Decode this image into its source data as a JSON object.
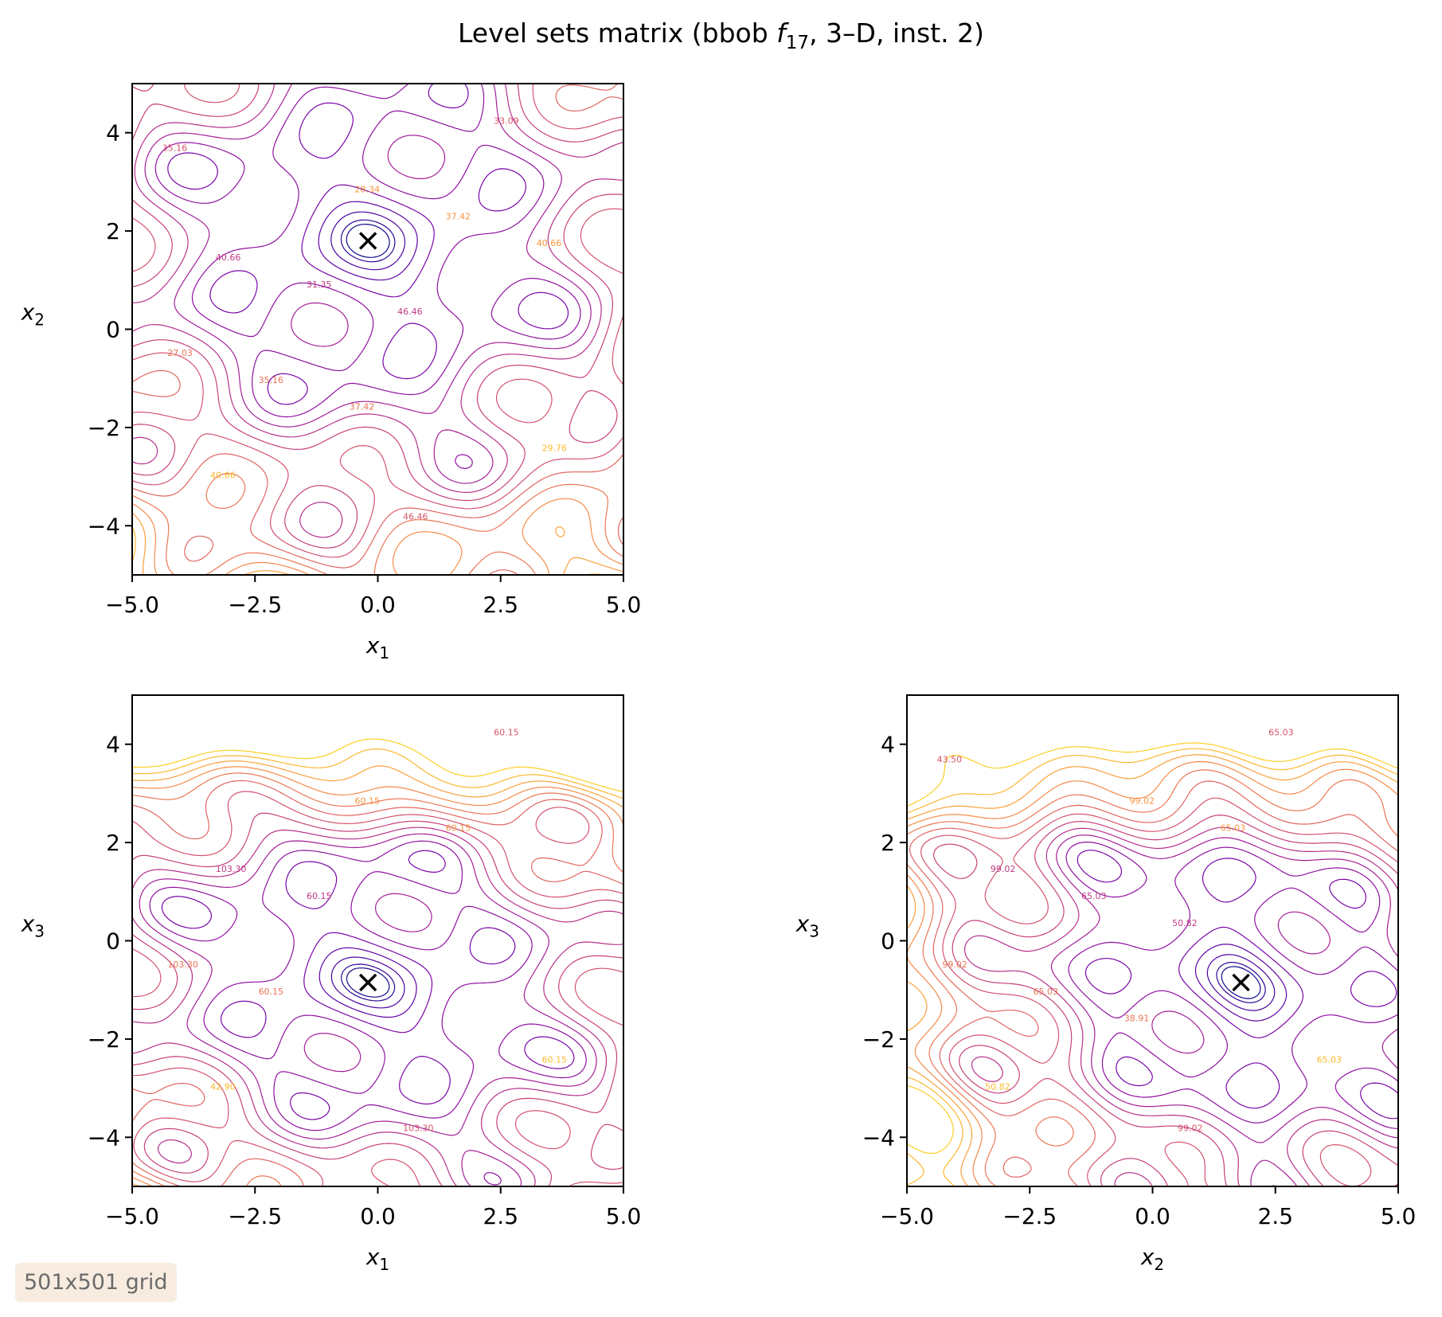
{
  "figure": {
    "title_prefix": "Level sets matrix (bbob ",
    "title_func": "f",
    "title_sub": "17",
    "title_suffix": ", 3–D, inst. 2)",
    "badge": "501x501 grid"
  },
  "chart_data": [
    {
      "type": "contour",
      "panel": "x1-x2",
      "xlabel": "x1",
      "ylabel": "x2",
      "xlim": [
        -5,
        5
      ],
      "ylim": [
        -5,
        5
      ],
      "xticks": [
        "−5.0",
        "−2.5",
        "0.0",
        "2.5",
        "5.0"
      ],
      "yticks": [
        "−4",
        "−2",
        "0",
        "2",
        "4"
      ],
      "colormap": "plasma",
      "optimum": [
        -0.2,
        1.8
      ],
      "contour_labels": [
        "40.66",
        "46.46",
        "27.03",
        "28.34",
        "29.76",
        "31.35",
        "33.09",
        "35.16",
        "37.42",
        "40.66",
        "46.46",
        "35.16",
        "37.42",
        "40.66"
      ],
      "level_range": [
        25,
        47
      ]
    },
    {
      "type": "contour",
      "panel": "x1-x3",
      "xlabel": "x1",
      "ylabel": "x3",
      "xlim": [
        -5,
        5
      ],
      "ylim": [
        -5,
        5
      ],
      "xticks": [
        "−5.0",
        "−2.5",
        "0.0",
        "2.5",
        "5.0"
      ],
      "yticks": [
        "−4",
        "−2",
        "0",
        "2",
        "4"
      ],
      "colormap": "plasma",
      "optimum": [
        -0.2,
        -0.85
      ],
      "contour_labels": [
        "103.30",
        "103.30",
        "103.30",
        "60.15",
        "60.15",
        "60.15",
        "60.15",
        "60.15",
        "60.15",
        "42.90"
      ],
      "level_range": [
        25,
        104
      ]
    },
    {
      "type": "contour",
      "panel": "x2-x3",
      "xlabel": "x2",
      "ylabel": "x3",
      "xlim": [
        -5,
        5
      ],
      "ylim": [
        -5,
        5
      ],
      "xticks": [
        "−5.0",
        "−2.5",
        "0.0",
        "2.5",
        "5.0"
      ],
      "yticks": [
        "−4",
        "−2",
        "0",
        "2",
        "4"
      ],
      "colormap": "plasma",
      "optimum": [
        1.8,
        -0.85
      ],
      "contour_labels": [
        "99.02",
        "99.02",
        "99.02",
        "99.02",
        "65.03",
        "65.03",
        "65.03",
        "65.03",
        "65.03",
        "50.82",
        "50.82",
        "43.50",
        "38.91"
      ],
      "level_range": [
        25,
        100
      ]
    }
  ]
}
